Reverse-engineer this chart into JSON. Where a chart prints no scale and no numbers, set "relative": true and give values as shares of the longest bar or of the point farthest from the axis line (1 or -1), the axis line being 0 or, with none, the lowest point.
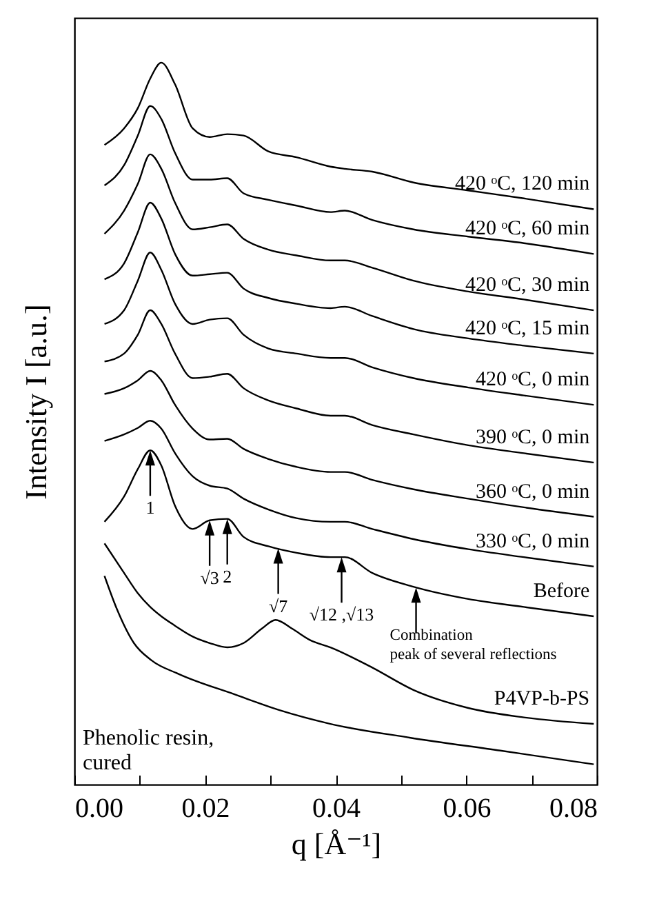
{
  "chart_data": {
    "type": "line",
    "relative": true,
    "xlabel": "q [Å⁻¹]",
    "ylabel": "Intensity I [a.u.]",
    "tick_labels": "x",
    "xlim": [
      0,
      0.08
    ],
    "xticks": [
      {
        "value": 0,
        "label": "0.00"
      },
      {
        "value": 0.01,
        "label": null
      },
      0.02,
      {
        "value": 0.03,
        "label": null
      },
      0.04,
      {
        "value": 0.05,
        "label": null
      },
      0.06,
      {
        "value": 0.07,
        "label": null
      },
      0.08
    ],
    "x": [
      0.0046,
      0.0076,
      0.0097,
      0.0116,
      0.0133,
      0.0154,
      0.0181,
      0.0207,
      0.0234,
      0.0259,
      0.0297,
      0.034,
      0.0392,
      0.0414,
      0.0456,
      0.0519,
      0.0603,
      0.0688,
      0.0795
    ],
    "series": [
      {
        "name": "420 ᵒC, 120 min",
        "color": "#000000",
        "values": [
          0.886,
          0.909,
          0.937,
          0.978,
          1.0,
          0.97,
          0.909,
          0.897,
          0.901,
          0.899,
          0.877,
          0.869,
          0.856,
          0.853,
          0.849,
          0.834,
          0.823,
          0.812,
          0.797
        ]
      },
      {
        "name": "420 ᵒC, 60 min",
        "color": "#000000",
        "values": [
          0.83,
          0.858,
          0.899,
          0.94,
          0.922,
          0.875,
          0.838,
          0.838,
          0.84,
          0.819,
          0.81,
          0.802,
          0.793,
          0.795,
          0.782,
          0.769,
          0.759,
          0.75,
          0.735
        ]
      },
      {
        "name": "420 ᵒC, 30 min",
        "color": "#000000",
        "values": [
          0.763,
          0.795,
          0.832,
          0.873,
          0.853,
          0.806,
          0.769,
          0.772,
          0.776,
          0.756,
          0.741,
          0.733,
          0.726,
          0.726,
          0.716,
          0.698,
          0.683,
          0.672,
          0.657
        ]
      },
      {
        "name": "420 ᵒC, 15 min",
        "color": "#000000",
        "values": [
          0.7,
          0.722,
          0.765,
          0.806,
          0.784,
          0.735,
          0.705,
          0.707,
          0.709,
          0.687,
          0.674,
          0.666,
          0.66,
          0.662,
          0.649,
          0.631,
          0.618,
          0.608,
          0.597
        ]
      },
      {
        "name": "420 ᵒC, 0 min",
        "color": "#000000",
        "values": [
          0.638,
          0.657,
          0.698,
          0.737,
          0.713,
          0.666,
          0.638,
          0.644,
          0.646,
          0.623,
          0.604,
          0.597,
          0.591,
          0.591,
          0.578,
          0.563,
          0.55,
          0.539,
          0.526
        ]
      },
      {
        "name": "390 ᵒC, 0 min",
        "color": "#000000",
        "values": [
          0.586,
          0.597,
          0.623,
          0.657,
          0.638,
          0.597,
          0.563,
          0.565,
          0.569,
          0.549,
          0.532,
          0.521,
          0.511,
          0.511,
          0.498,
          0.485,
          0.47,
          0.459,
          0.446
        ]
      },
      {
        "name": "360 ᵒC, 0 min",
        "color": "#000000",
        "values": [
          0.541,
          0.549,
          0.56,
          0.573,
          0.56,
          0.526,
          0.493,
          0.478,
          0.479,
          0.465,
          0.451,
          0.44,
          0.433,
          0.433,
          0.422,
          0.409,
          0.396,
          0.384,
          0.371
        ]
      },
      {
        "name": "330 ᵒC, 0 min",
        "color": "#000000",
        "values": [
          0.476,
          0.485,
          0.494,
          0.504,
          0.493,
          0.459,
          0.427,
          0.414,
          0.41,
          0.396,
          0.381,
          0.369,
          0.364,
          0.364,
          0.354,
          0.34,
          0.326,
          0.315,
          0.302
        ]
      },
      {
        "name": "Before",
        "color": "#000000",
        "values": [
          0.364,
          0.399,
          0.437,
          0.463,
          0.442,
          0.386,
          0.354,
          0.366,
          0.368,
          0.343,
          0.33,
          0.321,
          0.315,
          0.315,
          0.293,
          0.274,
          0.257,
          0.246,
          0.233
        ]
      },
      {
        "name": "P4VP-b-PS",
        "color": "#000000",
        "x": [
          0.0046,
          0.0076,
          0.0097,
          0.0116,
          0.0133,
          0.0154,
          0.0181,
          0.0207,
          0.0234,
          0.0259,
          0.0287,
          0.0308,
          0.0333,
          0.0361,
          0.0392,
          0.0456,
          0.0519,
          0.0603,
          0.0688,
          0.0795
        ],
        "values": [
          0.334,
          0.293,
          0.265,
          0.246,
          0.233,
          0.22,
          0.205,
          0.196,
          0.19,
          0.196,
          0.216,
          0.228,
          0.216,
          0.2,
          0.19,
          0.162,
          0.131,
          0.106,
          0.093,
          0.084
        ]
      },
      {
        "name": "Phenolic resin, cured",
        "color": "#000000",
        "x": [
          0.0046,
          0.0065,
          0.0091,
          0.0118,
          0.016,
          0.0245,
          0.0314,
          0.0392,
          0.0513,
          0.0652,
          0.0795
        ],
        "values": [
          0.289,
          0.243,
          0.196,
          0.172,
          0.153,
          0.125,
          0.103,
          0.084,
          0.065,
          0.047,
          0.028
        ]
      }
    ],
    "annotations": [
      {
        "text": "1",
        "x": 0.0116,
        "y": 0.463
      },
      {
        "text": "√3",
        "x": 0.0207,
        "y": 0.366
      },
      {
        "text": "2",
        "x": 0.0234,
        "y": 0.368
      },
      {
        "text": "√7",
        "x": 0.0312,
        "y": 0.327
      },
      {
        "text": "√12 ,√13",
        "x": 0.0409,
        "y": 0.315
      },
      {
        "text": "Combination peak of several reflections",
        "x": 0.0523,
        "y": 0.273
      }
    ]
  }
}
